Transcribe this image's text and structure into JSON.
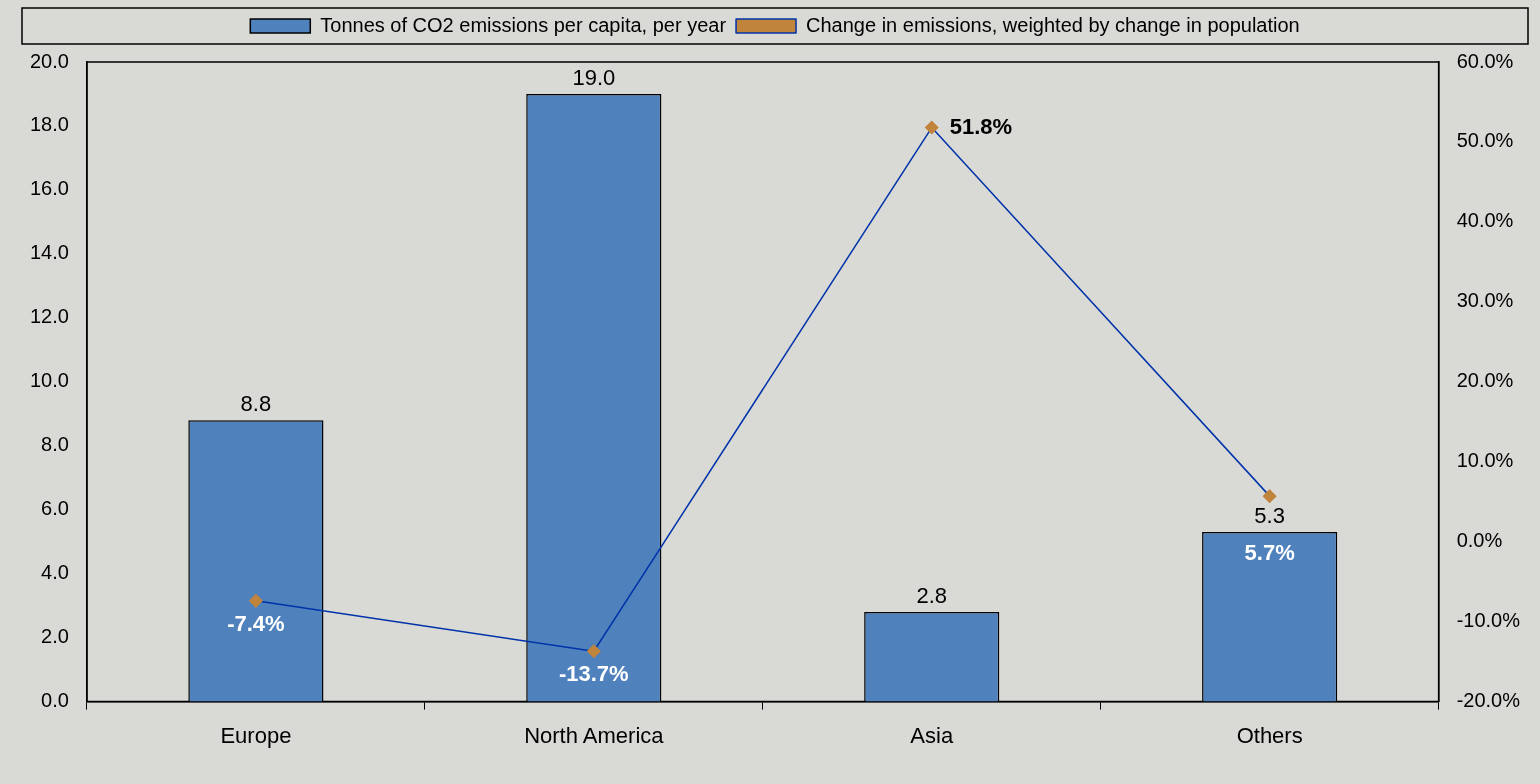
{
  "chart_data": {
    "type": "bar",
    "categories": [
      "Europe",
      "North America",
      "Asia",
      "Others"
    ],
    "series": [
      {
        "name": "Tonnes of CO2 emissions per capita, per year",
        "color": "#4f81bd",
        "values": [
          8.8,
          19.0,
          2.8,
          5.3
        ],
        "value_labels": [
          "8.8",
          "19.0",
          "2.8",
          "5.3"
        ]
      },
      {
        "name": "Change in emissions, weighted by change in population",
        "type": "line",
        "axis": "y2",
        "color": "#0033aa",
        "marker": "diamond",
        "values": [
          -7.4,
          -13.7,
          51.8,
          5.7
        ],
        "value_labels": [
          "-7.4%",
          "-13.7%",
          "51.8%",
          "5.7%"
        ]
      }
    ],
    "ylim": [
      0,
      20
    ],
    "yticks": [
      {
        "value": 0,
        "label": "0.0"
      },
      {
        "value": 2,
        "label": "2.0"
      },
      {
        "value": 4,
        "label": "4.0"
      },
      {
        "value": 6,
        "label": "6.0"
      },
      {
        "value": 8,
        "label": "8.0"
      },
      {
        "value": 10,
        "label": "10.0"
      },
      {
        "value": 12,
        "label": "12.0"
      },
      {
        "value": 14,
        "label": "14.0"
      },
      {
        "value": 16,
        "label": "16.0"
      },
      {
        "value": 18,
        "label": "18.0"
      },
      {
        "value": 20,
        "label": "20.0"
      }
    ],
    "y2lim": [
      -20,
      60
    ],
    "y2ticks": [
      {
        "value": -20,
        "label": "-20.0%"
      },
      {
        "value": -10,
        "label": "-10.0%"
      },
      {
        "value": 0,
        "label": "0.0%"
      },
      {
        "value": 10,
        "label": "10.0%"
      },
      {
        "value": 20,
        "label": "20.0%"
      },
      {
        "value": 30,
        "label": "30.0%"
      },
      {
        "value": 40,
        "label": "40.0%"
      },
      {
        "value": 50,
        "label": "50.0%"
      },
      {
        "value": 60,
        "label": "60.0%"
      }
    ],
    "grid": false,
    "legend": "top"
  }
}
